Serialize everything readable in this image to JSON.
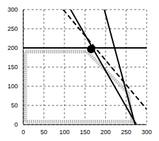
{
  "chart_data": {
    "type": "line",
    "xlim": [
      0,
      300
    ],
    "ylim": [
      0,
      300
    ],
    "xticks": [
      0,
      50,
      100,
      150,
      200,
      250,
      300
    ],
    "yticks": [
      0,
      50,
      100,
      150,
      200,
      250,
      300
    ],
    "grid": true,
    "series": [
      {
        "color": "#c0c0c0",
        "line_style": "hatched",
        "x": [
          5,
          5,
          155,
          255,
          265,
          5
        ],
        "values": [
          8,
          190,
          190,
          82,
          8,
          8
        ]
      },
      {
        "color": "#000000",
        "line_style": "solid",
        "x": [
          0,
          300
        ],
        "values": [
          200,
          200
        ]
      },
      {
        "color": "#000000",
        "line_style": "solid",
        "x": [
          115,
          275
        ],
        "values": [
          300,
          0
        ]
      },
      {
        "color": "#000000",
        "line_style": "dashed",
        "x": [
          97,
          300
        ],
        "values": [
          300,
          40
        ]
      },
      {
        "color": "#000000",
        "line_style": "solid",
        "x": [
          197,
          272
        ],
        "values": [
          300,
          0
        ]
      },
      {
        "type": "scatter",
        "marker": "circle",
        "color": "#000000",
        "x": [
          165
        ],
        "values": [
          197
        ]
      }
    ]
  }
}
